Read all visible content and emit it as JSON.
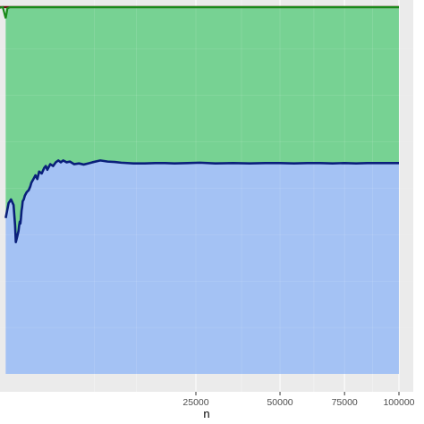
{
  "chart_data": {
    "type": "area",
    "title": "",
    "xlabel": "n",
    "ylabel": "",
    "x_scale": "sqrt",
    "xlim": [
      0,
      100000
    ],
    "ylim": [
      0,
      1
    ],
    "x_ticks": [
      25000,
      50000,
      75000,
      100000
    ],
    "x_tick_labels": [
      "25000",
      "50000",
      "75000",
      "100000"
    ],
    "x_minor_ticks": [
      6250,
      12500,
      37500,
      62500,
      87500
    ],
    "grid": true,
    "legend": "none",
    "bands": [
      {
        "lower": 0.0,
        "upper_series": "blue-line",
        "color": "#a4c2f4"
      },
      {
        "lower_series": "blue-line",
        "upper": 0.988,
        "color": "#77d293"
      }
    ],
    "series": [
      {
        "color": "#0a1f7a",
        "x": [
          100,
          150,
          200,
          260,
          300,
          320,
          360,
          400,
          420,
          440,
          460,
          480,
          500,
          520,
          540,
          580,
          620,
          700,
          780,
          850,
          900,
          1000,
          1100,
          1200,
          1300,
          1450,
          1600,
          1700,
          1800,
          2000,
          2200,
          2400,
          2600,
          2800,
          3000,
          3300,
          3600,
          4000,
          4500,
          5000,
          5500,
          6000,
          7000,
          8000,
          9000,
          10000,
          12000,
          14000,
          16000,
          18000,
          20000,
          23000,
          26000,
          30000,
          35000,
          40000,
          45000,
          50000,
          55000,
          60000,
          65000,
          70000,
          75000,
          80000,
          85000,
          90000,
          95000,
          100000
        ],
        "y": [
          0.42,
          0.46,
          0.47,
          0.455,
          0.4,
          0.355,
          0.37,
          0.385,
          0.4,
          0.41,
          0.405,
          0.42,
          0.44,
          0.45,
          0.465,
          0.47,
          0.48,
          0.49,
          0.495,
          0.505,
          0.515,
          0.525,
          0.535,
          0.525,
          0.545,
          0.54,
          0.555,
          0.56,
          0.55,
          0.565,
          0.56,
          0.57,
          0.575,
          0.57,
          0.575,
          0.57,
          0.572,
          0.565,
          0.567,
          0.564,
          0.567,
          0.57,
          0.575,
          0.572,
          0.571,
          0.569,
          0.567,
          0.567,
          0.568,
          0.568,
          0.567,
          0.568,
          0.569,
          0.567,
          0.568,
          0.567,
          0.568,
          0.568,
          0.567,
          0.568,
          0.568,
          0.567,
          0.568,
          0.567,
          0.568,
          0.568,
          0.568,
          0.568
        ]
      },
      {
        "color": "#1a8a1a",
        "x": [
          1,
          60,
          100,
          130,
          180,
          250,
          400,
          700,
          1000,
          100000
        ],
        "y": [
          0.983,
          0.988,
          0.958,
          0.985,
          0.988,
          0.988,
          0.988,
          0.988,
          0.988,
          0.988
        ]
      },
      {
        "color": "#6b1010",
        "x": [
          1,
          100000
        ],
        "y": [
          0.988,
          0.988
        ]
      }
    ],
    "colors": {
      "panel": "#ebebeb",
      "grid": "#ffffff",
      "upper_band": "#77d293",
      "lower_band": "#a4c2f4",
      "mean_line": "#0a1f7a",
      "green_line": "#1a8a1a",
      "top_line": "#6b1010"
    }
  }
}
